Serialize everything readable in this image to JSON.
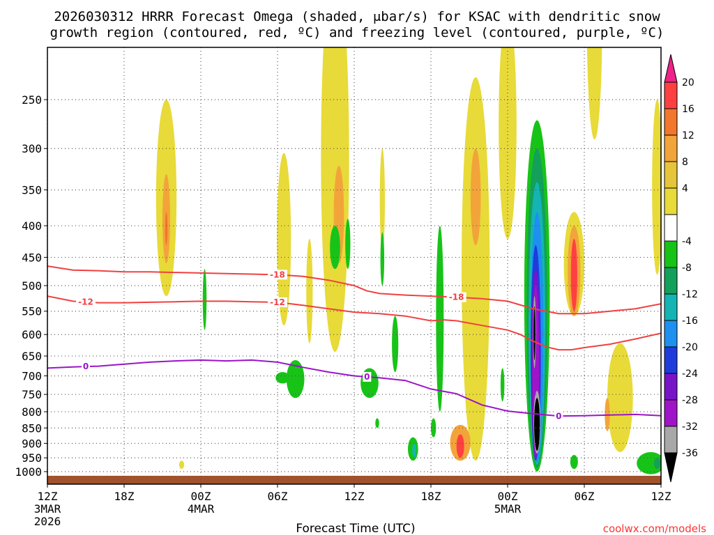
{
  "chart_data": {
    "type": "contour",
    "title_line1": "2026030312 HRRR Forecast Omega (shaded, μbar/s) for KSAC with dendritic snow",
    "title_line2": "growth region (contoured, red, ºC) and freezing level (contoured, purple, ºC)",
    "xlabel": "Forecast Time (UTC)",
    "ylabel": "",
    "xlim_hours": [
      0,
      48
    ],
    "ylim_hpa": [
      1020,
      220
    ],
    "y_ticks": [
      250,
      300,
      350,
      400,
      450,
      500,
      550,
      600,
      650,
      700,
      750,
      800,
      850,
      900,
      950,
      1000
    ],
    "x_ticks": [
      {
        "hour": 0,
        "label": "12Z",
        "sub1": "3MAR",
        "sub2": "2026"
      },
      {
        "hour": 6,
        "label": "18Z",
        "sub1": "",
        "sub2": ""
      },
      {
        "hour": 12,
        "label": "00Z",
        "sub1": "4MAR",
        "sub2": ""
      },
      {
        "hour": 18,
        "label": "06Z",
        "sub1": "",
        "sub2": ""
      },
      {
        "hour": 24,
        "label": "12Z",
        "sub1": "",
        "sub2": ""
      },
      {
        "hour": 30,
        "label": "18Z",
        "sub1": "",
        "sub2": ""
      },
      {
        "hour": 36,
        "label": "00Z",
        "sub1": "5MAR",
        "sub2": ""
      },
      {
        "hour": 42,
        "label": "06Z",
        "sub1": "",
        "sub2": ""
      },
      {
        "hour": 48,
        "label": "12Z",
        "sub1": "",
        "sub2": ""
      }
    ],
    "colorbar": {
      "labels": [
        "20",
        "16",
        "12",
        "8",
        "4",
        "-4",
        "-8",
        "-12",
        "-16",
        "-20",
        "-24",
        "-28",
        "-32",
        "-36"
      ],
      "colors": [
        "#ee2288",
        "#ff4040",
        "#f2762c",
        "#f2a43a",
        "#e6c53a",
        "#e8da38",
        "#ffffff",
        "#18c318",
        "#12a05a",
        "#14b4b4",
        "#1e90f0",
        "#1e3cdc",
        "#7814c8",
        "#a014c8",
        "#a8a8a8",
        "#000000"
      ]
    },
    "series": [
      {
        "name": "-18",
        "color": "#f04040",
        "label_at": [
          [
            18,
            "-18"
          ],
          [
            32,
            "-18"
          ]
        ],
        "points": [
          [
            0,
            465
          ],
          [
            2,
            472
          ],
          [
            4,
            473
          ],
          [
            6,
            475
          ],
          [
            8,
            475
          ],
          [
            10,
            476
          ],
          [
            12,
            477
          ],
          [
            14,
            478
          ],
          [
            16,
            479
          ],
          [
            18,
            480
          ],
          [
            20,
            483
          ],
          [
            22,
            490
          ],
          [
            24,
            500
          ],
          [
            25,
            510
          ],
          [
            26,
            515
          ],
          [
            28,
            518
          ],
          [
            30,
            520
          ],
          [
            32,
            522
          ],
          [
            34,
            525
          ],
          [
            36,
            530
          ],
          [
            38,
            545
          ],
          [
            40,
            555
          ],
          [
            42,
            555
          ],
          [
            44,
            550
          ],
          [
            46,
            545
          ],
          [
            48,
            535
          ]
        ]
      },
      {
        "name": "-12",
        "color": "#f04040",
        "label_at": [
          [
            3,
            "-12"
          ],
          [
            18,
            "-12"
          ]
        ],
        "points": [
          [
            0,
            520
          ],
          [
            2,
            530
          ],
          [
            4,
            533
          ],
          [
            6,
            533
          ],
          [
            8,
            532
          ],
          [
            10,
            531
          ],
          [
            12,
            530
          ],
          [
            14,
            530
          ],
          [
            16,
            531
          ],
          [
            18,
            532
          ],
          [
            20,
            538
          ],
          [
            22,
            545
          ],
          [
            24,
            552
          ],
          [
            26,
            555
          ],
          [
            28,
            560
          ],
          [
            30,
            570
          ],
          [
            31,
            568
          ],
          [
            32,
            570
          ],
          [
            34,
            580
          ],
          [
            36,
            590
          ],
          [
            37,
            600
          ],
          [
            38,
            615
          ],
          [
            39,
            628
          ],
          [
            40,
            635
          ],
          [
            41,
            635
          ],
          [
            42,
            630
          ],
          [
            44,
            622
          ],
          [
            46,
            610
          ],
          [
            48,
            597
          ]
        ]
      },
      {
        "name": "0",
        "color": "#9a14c8",
        "label_at": [
          [
            3,
            "0"
          ],
          [
            25,
            "0"
          ],
          [
            40,
            "0"
          ]
        ],
        "points": [
          [
            0,
            680
          ],
          [
            2,
            677
          ],
          [
            4,
            675
          ],
          [
            6,
            670
          ],
          [
            8,
            665
          ],
          [
            10,
            662
          ],
          [
            12,
            660
          ],
          [
            14,
            662
          ],
          [
            16,
            660
          ],
          [
            18,
            665
          ],
          [
            20,
            678
          ],
          [
            22,
            690
          ],
          [
            24,
            700
          ],
          [
            26,
            705
          ],
          [
            28,
            712
          ],
          [
            30,
            735
          ],
          [
            32,
            748
          ],
          [
            34,
            780
          ],
          [
            36,
            798
          ],
          [
            38,
            806
          ],
          [
            40,
            813
          ],
          [
            42,
            812
          ],
          [
            44,
            810
          ],
          [
            46,
            808
          ],
          [
            48,
            812
          ]
        ]
      }
    ],
    "shaded_regions_note": "Omega shading: positive (yellow/orange/red) columns near 09Z, 15Z-18Z, 22Z-00Z, 06Z-12Z; strong negative (green to black) core near 02Z 5MAR from 950 to 280 hPa; surface terrain brown below 1010 hPa",
    "website": "coolwx.com/models"
  }
}
